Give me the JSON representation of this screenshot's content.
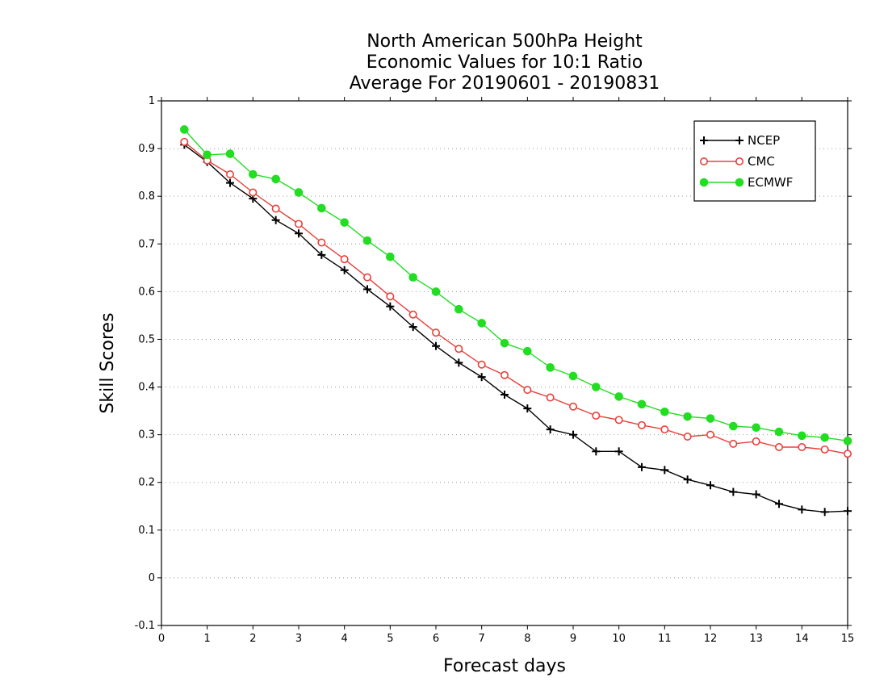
{
  "chart_data": {
    "type": "line",
    "title_lines": [
      "North American 500hPa Height",
      "Economic Values for 10:1 Ratio",
      "Average For 20190601 - 20190831"
    ],
    "xlabel": "Forecast days",
    "ylabel": "Skill Scores",
    "xlim": [
      0,
      15
    ],
    "ylim": [
      -0.1,
      1
    ],
    "x_ticks": [
      0,
      1,
      2,
      3,
      4,
      5,
      6,
      7,
      8,
      9,
      10,
      11,
      12,
      13,
      14,
      15
    ],
    "y_ticks": [
      -0.1,
      0,
      0.1,
      0.2,
      0.3,
      0.4,
      0.5,
      0.6,
      0.7,
      0.8,
      0.9,
      1
    ],
    "y_tick_labels": [
      "-0.1",
      "0",
      "0.1",
      "0.2",
      "0.3",
      "0.4",
      "0.5",
      "0.6",
      "0.7",
      "0.8",
      "0.9",
      "1"
    ],
    "grid": "horizontal dotted",
    "legend_position": "top-right",
    "x": [
      0.5,
      1,
      1.5,
      2,
      2.5,
      3,
      3.5,
      4,
      4.5,
      5,
      5.5,
      6,
      6.5,
      7,
      7.5,
      8,
      8.5,
      9,
      9.5,
      10,
      10.5,
      11,
      11.5,
      12,
      12.5,
      13,
      13.5,
      14,
      14.5,
      15
    ],
    "series": [
      {
        "name": "NCEP",
        "color": "#000000",
        "marker": "plus",
        "values": [
          0.908,
          0.872,
          0.828,
          0.795,
          0.75,
          0.722,
          0.677,
          0.645,
          0.605,
          0.569,
          0.526,
          0.486,
          0.451,
          0.421,
          0.384,
          0.355,
          0.311,
          0.3,
          0.265,
          0.265,
          0.232,
          0.226,
          0.206,
          0.194,
          0.18,
          0.175,
          0.155,
          0.143,
          0.138,
          0.14
        ]
      },
      {
        "name": "CMC",
        "color": "#e8413a",
        "marker": "open-circle",
        "values": [
          0.914,
          0.875,
          0.846,
          0.808,
          0.774,
          0.742,
          0.703,
          0.668,
          0.63,
          0.59,
          0.552,
          0.514,
          0.48,
          0.447,
          0.425,
          0.394,
          0.378,
          0.359,
          0.34,
          0.331,
          0.32,
          0.311,
          0.296,
          0.3,
          0.281,
          0.286,
          0.274,
          0.274,
          0.269,
          0.26
        ]
      },
      {
        "name": "ECMWF",
        "color": "#22dd22",
        "marker": "filled-circle",
        "values": [
          0.94,
          0.887,
          0.889,
          0.846,
          0.836,
          0.808,
          0.775,
          0.745,
          0.707,
          0.673,
          0.63,
          0.6,
          0.563,
          0.534,
          0.492,
          0.475,
          0.441,
          0.423,
          0.4,
          0.38,
          0.364,
          0.348,
          0.338,
          0.334,
          0.318,
          0.315,
          0.306,
          0.298,
          0.294,
          0.287
        ]
      }
    ]
  }
}
